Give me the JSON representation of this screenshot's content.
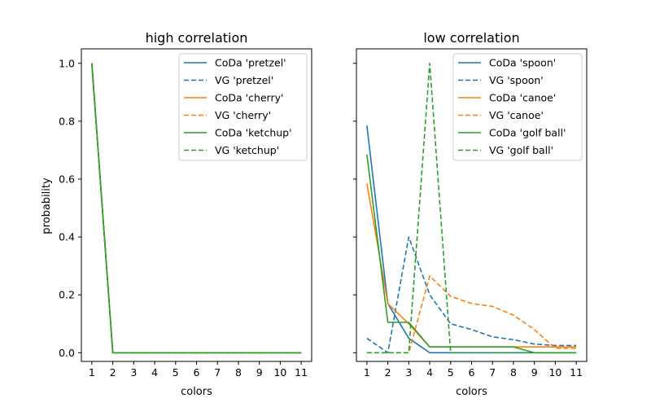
{
  "chart_data": [
    {
      "type": "line",
      "title": "high correlation",
      "xlabel": "colors",
      "ylabel": "probability",
      "x": [
        1,
        2,
        3,
        4,
        5,
        6,
        7,
        8,
        9,
        10,
        11
      ],
      "xticks": [
        "1",
        "2",
        "3",
        "4",
        "5",
        "6",
        "7",
        "8",
        "9",
        "10",
        "11"
      ],
      "yticks": [
        "0.0",
        "0.2",
        "0.4",
        "0.6",
        "0.8",
        "1.0"
      ],
      "ylim": [
        -0.03,
        1.05
      ],
      "xlim": [
        0.5,
        11.5
      ],
      "legend": "top-right",
      "series": [
        {
          "name": "CoDa 'pretzel'",
          "color": "#1f77b4",
          "style": "solid",
          "values": [
            1.0,
            0.0,
            0.0,
            0.0,
            0.0,
            0.0,
            0.0,
            0.0,
            0.0,
            0.0,
            0.0
          ]
        },
        {
          "name": "VG 'pretzel'",
          "color": "#1f77b4",
          "style": "dashed",
          "values": [
            1.0,
            0.0,
            0.0,
            0.0,
            0.0,
            0.0,
            0.0,
            0.0,
            0.0,
            0.0,
            0.0
          ]
        },
        {
          "name": "CoDa 'cherry'",
          "color": "#ff7f0e",
          "style": "solid",
          "values": [
            1.0,
            0.0,
            0.0,
            0.0,
            0.0,
            0.0,
            0.0,
            0.0,
            0.0,
            0.0,
            0.0
          ]
        },
        {
          "name": "VG 'cherry'",
          "color": "#ff7f0e",
          "style": "dashed",
          "values": [
            1.0,
            0.0,
            0.0,
            0.0,
            0.0,
            0.0,
            0.0,
            0.0,
            0.0,
            0.0,
            0.0
          ]
        },
        {
          "name": "CoDa 'ketchup'",
          "color": "#2ca02c",
          "style": "solid",
          "values": [
            1.0,
            0.0,
            0.0,
            0.0,
            0.0,
            0.0,
            0.0,
            0.0,
            0.0,
            0.0,
            0.0
          ]
        },
        {
          "name": "VG 'ketchup'",
          "color": "#2ca02c",
          "style": "dashed",
          "values": [
            1.0,
            0.0,
            0.0,
            0.0,
            0.0,
            0.0,
            0.0,
            0.0,
            0.0,
            0.0,
            0.0
          ]
        }
      ]
    },
    {
      "type": "line",
      "title": "low correlation",
      "xlabel": "colors",
      "ylabel": "",
      "x": [
        1,
        2,
        3,
        4,
        5,
        6,
        7,
        8,
        9,
        10,
        11
      ],
      "xticks": [
        "1",
        "2",
        "3",
        "4",
        "5",
        "6",
        "7",
        "8",
        "9",
        "10",
        "11"
      ],
      "yticks": [
        "",
        "",
        "",
        "",
        "",
        ""
      ],
      "ylim": [
        -0.03,
        1.05
      ],
      "xlim": [
        0.5,
        11.5
      ],
      "legend": "top-right",
      "series": [
        {
          "name": "CoDa 'spoon'",
          "color": "#1f77b4",
          "style": "solid",
          "values": [
            0.785,
            0.17,
            0.05,
            0.0,
            0.0,
            0.0,
            0.0,
            0.0,
            0.0,
            0.0,
            0.0
          ]
        },
        {
          "name": "VG 'spoon'",
          "color": "#1f77b4",
          "style": "dashed",
          "values": [
            0.05,
            0.0,
            0.4,
            0.2,
            0.1,
            0.08,
            0.055,
            0.045,
            0.03,
            0.025,
            0.025
          ]
        },
        {
          "name": "CoDa 'canoe'",
          "color": "#ff7f0e",
          "style": "solid",
          "values": [
            0.585,
            0.17,
            0.1,
            0.02,
            0.02,
            0.02,
            0.02,
            0.02,
            0.02,
            0.02,
            0.02
          ]
        },
        {
          "name": "VG 'canoe'",
          "color": "#ff7f0e",
          "style": "dashed",
          "values": [
            0.0,
            0.0,
            0.0,
            0.265,
            0.195,
            0.17,
            0.16,
            0.13,
            0.08,
            0.015,
            0.015
          ]
        },
        {
          "name": "CoDa 'golf ball'",
          "color": "#2ca02c",
          "style": "solid",
          "values": [
            0.685,
            0.105,
            0.105,
            0.02,
            0.02,
            0.02,
            0.02,
            0.02,
            0.0,
            0.0,
            0.0
          ]
        },
        {
          "name": "VG 'golf ball'",
          "color": "#2ca02c",
          "style": "dashed",
          "values": [
            0.0,
            0.0,
            0.0,
            1.0,
            0.0,
            0.0,
            0.0,
            0.0,
            0.0,
            0.0,
            0.0
          ]
        }
      ]
    }
  ]
}
